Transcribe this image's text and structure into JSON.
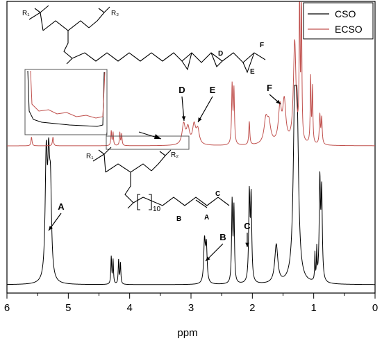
{
  "chart_data": {
    "type": "line",
    "xlabel": "ppm",
    "x_reversed": true,
    "xlim": [
      6,
      0
    ],
    "x_ticks": [
      6,
      5,
      4,
      3,
      2,
      1,
      0
    ],
    "grid": false,
    "legend_position": "top-right",
    "legend": [
      "CSO",
      "ECSO"
    ],
    "series": [
      {
        "name": "CSO",
        "color": "#000000",
        "peaks": [
          {
            "ppm": 5.36,
            "h": 0.74,
            "w": 0.02
          },
          {
            "ppm": 5.32,
            "h": 0.62,
            "w": 0.02
          },
          {
            "ppm": 5.29,
            "h": 0.5,
            "w": 0.02
          },
          {
            "ppm": 4.3,
            "h": 0.17,
            "w": 0.008
          },
          {
            "ppm": 4.27,
            "h": 0.15,
            "w": 0.008
          },
          {
            "ppm": 4.18,
            "h": 0.15,
            "w": 0.008
          },
          {
            "ppm": 4.15,
            "h": 0.13,
            "w": 0.008
          },
          {
            "ppm": 2.78,
            "h": 0.26,
            "w": 0.015
          },
          {
            "ppm": 2.75,
            "h": 0.23,
            "w": 0.015
          },
          {
            "ppm": 2.33,
            "h": 0.5,
            "w": 0.01
          },
          {
            "ppm": 2.3,
            "h": 0.46,
            "w": 0.01
          },
          {
            "ppm": 2.05,
            "h": 0.54,
            "w": 0.012
          },
          {
            "ppm": 2.02,
            "h": 0.52,
            "w": 0.012
          },
          {
            "ppm": 1.61,
            "h": 0.24,
            "w": 0.03
          },
          {
            "ppm": 1.31,
            "h": 1.0,
            "w": 0.028
          },
          {
            "ppm": 1.27,
            "h": 0.88,
            "w": 0.028
          },
          {
            "ppm": 0.98,
            "h": 0.17,
            "w": 0.006
          },
          {
            "ppm": 0.95,
            "h": 0.19,
            "w": 0.006
          },
          {
            "ppm": 0.9,
            "h": 0.62,
            "w": 0.012
          },
          {
            "ppm": 0.87,
            "h": 0.55,
            "w": 0.012
          }
        ]
      },
      {
        "name": "ECSO",
        "color": "#c0504d",
        "peaks": [
          {
            "ppm": 5.6,
            "h": 0.06,
            "w": 0.01
          },
          {
            "ppm": 5.25,
            "h": 0.06,
            "w": 0.01
          },
          {
            "ppm": 4.3,
            "h": 0.1,
            "w": 0.008
          },
          {
            "ppm": 4.27,
            "h": 0.09,
            "w": 0.008
          },
          {
            "ppm": 4.16,
            "h": 0.09,
            "w": 0.008
          },
          {
            "ppm": 4.13,
            "h": 0.08,
            "w": 0.008
          },
          {
            "ppm": 3.12,
            "h": 0.14,
            "w": 0.03
          },
          {
            "ppm": 3.05,
            "h": 0.11,
            "w": 0.03
          },
          {
            "ppm": 2.95,
            "h": 0.13,
            "w": 0.03
          },
          {
            "ppm": 2.89,
            "h": 0.1,
            "w": 0.03
          },
          {
            "ppm": 2.33,
            "h": 0.4,
            "w": 0.01
          },
          {
            "ppm": 2.3,
            "h": 0.37,
            "w": 0.01
          },
          {
            "ppm": 2.05,
            "h": 0.16,
            "w": 0.01
          },
          {
            "ppm": 1.78,
            "h": 0.16,
            "w": 0.035
          },
          {
            "ppm": 1.73,
            "h": 0.13,
            "w": 0.035
          },
          {
            "ppm": 1.55,
            "h": 0.24,
            "w": 0.03
          },
          {
            "ppm": 1.48,
            "h": 0.28,
            "w": 0.03
          },
          {
            "ppm": 1.31,
            "h": 0.7,
            "w": 0.025
          },
          {
            "ppm": 1.23,
            "h": 1.0,
            "w": 0.008
          },
          {
            "ppm": 1.2,
            "h": 1.0,
            "w": 0.008
          },
          {
            "ppm": 1.05,
            "h": 0.45,
            "w": 0.008
          },
          {
            "ppm": 1.02,
            "h": 0.38,
            "w": 0.008
          },
          {
            "ppm": 0.9,
            "h": 0.2,
            "w": 0.01
          },
          {
            "ppm": 0.87,
            "h": 0.18,
            "w": 0.01
          }
        ]
      }
    ],
    "annotations": [
      {
        "label": "A",
        "series": "CSO",
        "ppm": 5.36
      },
      {
        "label": "B",
        "series": "CSO",
        "ppm": 2.78
      },
      {
        "label": "C",
        "series": "CSO",
        "ppm": 2.05
      },
      {
        "label": "D",
        "series": "ECSO",
        "ppm": 3.12
      },
      {
        "label": "E",
        "series": "ECSO",
        "ppm": 2.95
      },
      {
        "label": "F",
        "series": "ECSO",
        "ppm": 1.48
      }
    ]
  },
  "structures": {
    "cso": {
      "r1": "R₁",
      "r2": "R₂",
      "subscript": "10",
      "labels": [
        "B",
        "A",
        "C"
      ]
    },
    "ecso": {
      "r1": "R₁",
      "r2": "R₂",
      "labels": [
        "D",
        "E",
        "F"
      ]
    }
  }
}
